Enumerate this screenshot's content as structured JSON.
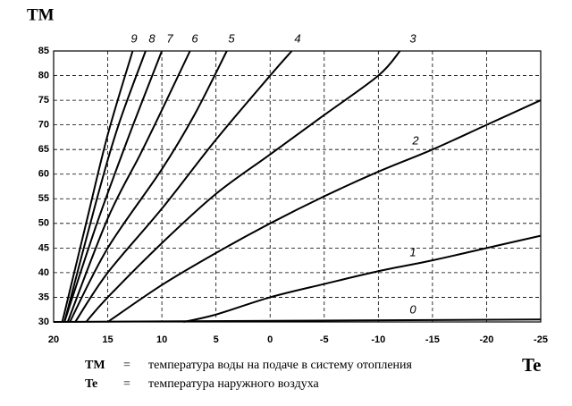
{
  "chart_data": {
    "type": "line",
    "y_label": "TM",
    "x_label": "Te",
    "xlim": [
      20,
      -25
    ],
    "ylim": [
      30,
      85
    ],
    "xticks": [
      20,
      15,
      10,
      5,
      0,
      -5,
      -10,
      -15,
      -20,
      -25
    ],
    "yticks": [
      30,
      35,
      40,
      45,
      50,
      55,
      60,
      65,
      70,
      75,
      80,
      85
    ],
    "grid": true,
    "series": [
      {
        "name": "0",
        "color": "#000000",
        "x": [
          20,
          -25
        ],
        "values": [
          30,
          30.5
        ]
      },
      {
        "name": "1",
        "color": "#000000",
        "x": [
          8,
          5,
          0,
          -5,
          -10,
          -15,
          -20,
          -25
        ],
        "values": [
          30,
          31.5,
          35,
          37.7,
          40.3,
          42.5,
          45,
          47.5
        ]
      },
      {
        "name": "2",
        "color": "#000000",
        "x": [
          15,
          10,
          5,
          0,
          -5,
          -10,
          -15,
          -20,
          -25
        ],
        "values": [
          30,
          37.5,
          44,
          50,
          55.5,
          60.5,
          65,
          70,
          75
        ]
      },
      {
        "name": "3",
        "color": "#000000",
        "x": [
          17,
          15,
          10,
          5,
          0,
          -5,
          -10,
          -12
        ],
        "values": [
          30,
          35,
          46,
          56,
          64,
          72,
          80,
          85
        ]
      },
      {
        "name": "4",
        "color": "#000000",
        "x": [
          18,
          15,
          10,
          5,
          0,
          -2
        ],
        "values": [
          30,
          40,
          53,
          67,
          80,
          85
        ]
      },
      {
        "name": "5",
        "color": "#000000",
        "x": [
          18.5,
          15,
          10,
          7,
          4
        ],
        "values": [
          30,
          45,
          61,
          72,
          85
        ]
      },
      {
        "name": "6",
        "color": "#000000",
        "x": [
          18.7,
          15,
          12,
          10,
          7.4
        ],
        "values": [
          30,
          51,
          64,
          73,
          85
        ]
      },
      {
        "name": "7",
        "color": "#000000",
        "x": [
          19,
          16,
          13,
          10
        ],
        "values": [
          30,
          50,
          68,
          85
        ]
      },
      {
        "name": "8",
        "color": "#000000",
        "x": [
          19,
          16,
          14,
          11.5
        ],
        "values": [
          30,
          55,
          70,
          85
        ]
      },
      {
        "name": "9",
        "color": "#000000",
        "x": [
          19.2,
          17,
          15,
          12.7
        ],
        "values": [
          30,
          50,
          68,
          85
        ]
      }
    ],
    "notes": [
      {
        "symbol": "TM",
        "sep": "=",
        "text": "температура воды на подаче в систему отопления"
      },
      {
        "symbol": "Te",
        "sep": "=",
        "text": "температура наружного воздуха"
      }
    ]
  }
}
